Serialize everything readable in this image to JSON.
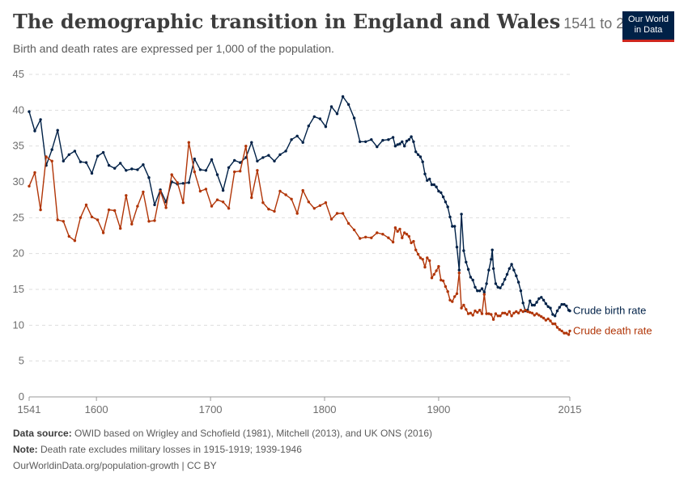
{
  "header": {
    "title": "The demographic transition in England and Wales",
    "range": "1541 to 2015",
    "subtitle": "Birth and death rates are expressed per 1,000 of the population."
  },
  "logo": {
    "line1": "Our World",
    "line2": "in Data"
  },
  "footer": {
    "source_label": "Data source:",
    "source_text": " OWID based on Wrigley and Schofield (1981), Mitchell (2013), and UK ONS (2016)",
    "note_label": "Note:",
    "note_text": " Death rate excludes military losses in 1915-1919; 1939-1946",
    "link": "OurWorldinData.org/population-growth | CC BY"
  },
  "chart_data": {
    "type": "line",
    "xlim": [
      1541,
      2015
    ],
    "ylim": [
      0,
      45
    ],
    "yticks": [
      0,
      5,
      10,
      15,
      20,
      25,
      30,
      35,
      40,
      45
    ],
    "xticks": [
      1541,
      1600,
      1700,
      1800,
      1900,
      2015
    ],
    "grid": true,
    "series": [
      {
        "name": "Crude birth rate",
        "color": "#002147",
        "points": [
          [
            1541,
            39.8
          ],
          [
            1546,
            37.1
          ],
          [
            1551,
            38.7
          ],
          [
            1556,
            32.3
          ],
          [
            1561,
            34.5
          ],
          [
            1566,
            37.2
          ],
          [
            1571,
            32.9
          ],
          [
            1576,
            33.8
          ],
          [
            1581,
            34.3
          ],
          [
            1586,
            32.8
          ],
          [
            1591,
            32.7
          ],
          [
            1596,
            31.2
          ],
          [
            1601,
            33.6
          ],
          [
            1606,
            34.1
          ],
          [
            1611,
            32.3
          ],
          [
            1616,
            31.9
          ],
          [
            1621,
            32.6
          ],
          [
            1626,
            31.6
          ],
          [
            1631,
            31.8
          ],
          [
            1636,
            31.7
          ],
          [
            1641,
            32.4
          ],
          [
            1646,
            30.6
          ],
          [
            1651,
            26.8
          ],
          [
            1656,
            28.9
          ],
          [
            1661,
            27.2
          ],
          [
            1666,
            30.0
          ],
          [
            1671,
            29.7
          ],
          [
            1676,
            29.8
          ],
          [
            1681,
            29.9
          ],
          [
            1686,
            33.2
          ],
          [
            1691,
            31.7
          ],
          [
            1696,
            31.6
          ],
          [
            1701,
            33.1
          ],
          [
            1706,
            31.0
          ],
          [
            1711,
            28.8
          ],
          [
            1716,
            32.0
          ],
          [
            1721,
            33.0
          ],
          [
            1726,
            32.7
          ],
          [
            1731,
            33.4
          ],
          [
            1736,
            35.5
          ],
          [
            1741,
            32.9
          ],
          [
            1746,
            33.4
          ],
          [
            1751,
            33.7
          ],
          [
            1756,
            32.9
          ],
          [
            1761,
            33.8
          ],
          [
            1766,
            34.3
          ],
          [
            1771,
            35.9
          ],
          [
            1776,
            36.4
          ],
          [
            1781,
            35.5
          ],
          [
            1786,
            37.8
          ],
          [
            1791,
            39.1
          ],
          [
            1796,
            38.8
          ],
          [
            1801,
            37.7
          ],
          [
            1806,
            40.5
          ],
          [
            1811,
            39.5
          ],
          [
            1816,
            41.9
          ],
          [
            1821,
            40.8
          ],
          [
            1826,
            38.9
          ],
          [
            1831,
            35.6
          ],
          [
            1836,
            35.6
          ],
          [
            1841,
            35.9
          ],
          [
            1846,
            34.9
          ],
          [
            1851,
            35.8
          ],
          [
            1856,
            35.9
          ],
          [
            1860,
            36.2
          ],
          [
            1862,
            35.0
          ],
          [
            1864,
            35.2
          ],
          [
            1866,
            35.3
          ],
          [
            1868,
            35.6
          ],
          [
            1870,
            35.0
          ],
          [
            1872,
            35.7
          ],
          [
            1874,
            35.9
          ],
          [
            1876,
            36.3
          ],
          [
            1878,
            35.6
          ],
          [
            1880,
            34.2
          ],
          [
            1882,
            33.8
          ],
          [
            1884,
            33.5
          ],
          [
            1886,
            32.8
          ],
          [
            1888,
            31.1
          ],
          [
            1890,
            30.2
          ],
          [
            1892,
            30.4
          ],
          [
            1894,
            29.6
          ],
          [
            1896,
            29.6
          ],
          [
            1898,
            29.3
          ],
          [
            1900,
            28.7
          ],
          [
            1902,
            28.5
          ],
          [
            1904,
            27.9
          ],
          [
            1906,
            27.2
          ],
          [
            1908,
            26.5
          ],
          [
            1910,
            25.1
          ],
          [
            1912,
            23.8
          ],
          [
            1914,
            23.8
          ],
          [
            1916,
            20.9
          ],
          [
            1918,
            17.7
          ],
          [
            1920,
            25.5
          ],
          [
            1922,
            20.4
          ],
          [
            1924,
            18.8
          ],
          [
            1926,
            17.8
          ],
          [
            1928,
            16.7
          ],
          [
            1930,
            16.3
          ],
          [
            1932,
            15.3
          ],
          [
            1934,
            14.8
          ],
          [
            1936,
            14.8
          ],
          [
            1938,
            15.1
          ],
          [
            1940,
            14.6
          ],
          [
            1942,
            15.8
          ],
          [
            1944,
            17.7
          ],
          [
            1946,
            19.2
          ],
          [
            1947,
            20.5
          ],
          [
            1948,
            17.9
          ],
          [
            1950,
            15.8
          ],
          [
            1952,
            15.3
          ],
          [
            1954,
            15.2
          ],
          [
            1956,
            15.7
          ],
          [
            1958,
            16.4
          ],
          [
            1960,
            17.1
          ],
          [
            1962,
            17.9
          ],
          [
            1964,
            18.5
          ],
          [
            1966,
            17.7
          ],
          [
            1968,
            16.9
          ],
          [
            1970,
            16.0
          ],
          [
            1972,
            14.8
          ],
          [
            1974,
            13.1
          ],
          [
            1976,
            12.0
          ],
          [
            1978,
            12.1
          ],
          [
            1980,
            13.4
          ],
          [
            1982,
            12.8
          ],
          [
            1984,
            12.8
          ],
          [
            1986,
            13.2
          ],
          [
            1988,
            13.7
          ],
          [
            1990,
            13.9
          ],
          [
            1992,
            13.5
          ],
          [
            1994,
            13.0
          ],
          [
            1996,
            12.6
          ],
          [
            1998,
            12.4
          ],
          [
            2000,
            11.5
          ],
          [
            2002,
            11.3
          ],
          [
            2004,
            12.0
          ],
          [
            2006,
            12.5
          ],
          [
            2008,
            12.9
          ],
          [
            2010,
            12.9
          ],
          [
            2012,
            12.7
          ],
          [
            2014,
            12.1
          ],
          [
            2015,
            12.0
          ]
        ]
      },
      {
        "name": "Crude death rate",
        "color": "#b13507",
        "points": [
          [
            1541,
            29.4
          ],
          [
            1546,
            31.3
          ],
          [
            1551,
            26.1
          ],
          [
            1556,
            33.5
          ],
          [
            1561,
            32.9
          ],
          [
            1566,
            24.7
          ],
          [
            1571,
            24.5
          ],
          [
            1576,
            22.4
          ],
          [
            1581,
            21.8
          ],
          [
            1586,
            25.0
          ],
          [
            1591,
            26.8
          ],
          [
            1596,
            25.1
          ],
          [
            1601,
            24.7
          ],
          [
            1606,
            22.9
          ],
          [
            1611,
            26.1
          ],
          [
            1616,
            26.0
          ],
          [
            1621,
            23.5
          ],
          [
            1626,
            28.1
          ],
          [
            1631,
            24.1
          ],
          [
            1636,
            26.6
          ],
          [
            1641,
            28.6
          ],
          [
            1646,
            24.5
          ],
          [
            1651,
            24.6
          ],
          [
            1656,
            28.7
          ],
          [
            1661,
            26.4
          ],
          [
            1666,
            31.0
          ],
          [
            1671,
            29.9
          ],
          [
            1676,
            27.1
          ],
          [
            1681,
            35.5
          ],
          [
            1686,
            31.4
          ],
          [
            1691,
            28.7
          ],
          [
            1696,
            29.0
          ],
          [
            1701,
            26.6
          ],
          [
            1706,
            27.5
          ],
          [
            1711,
            27.2
          ],
          [
            1716,
            26.3
          ],
          [
            1721,
            31.4
          ],
          [
            1726,
            31.5
          ],
          [
            1731,
            35.0
          ],
          [
            1736,
            27.8
          ],
          [
            1741,
            31.6
          ],
          [
            1746,
            27.1
          ],
          [
            1751,
            26.2
          ],
          [
            1756,
            25.9
          ],
          [
            1761,
            28.7
          ],
          [
            1766,
            28.2
          ],
          [
            1771,
            27.6
          ],
          [
            1776,
            25.6
          ],
          [
            1781,
            28.8
          ],
          [
            1786,
            27.2
          ],
          [
            1791,
            26.3
          ],
          [
            1796,
            26.7
          ],
          [
            1801,
            27.1
          ],
          [
            1806,
            24.8
          ],
          [
            1811,
            25.6
          ],
          [
            1816,
            25.6
          ],
          [
            1821,
            24.2
          ],
          [
            1826,
            23.3
          ],
          [
            1831,
            22.1
          ],
          [
            1836,
            22.3
          ],
          [
            1841,
            22.2
          ],
          [
            1846,
            22.9
          ],
          [
            1851,
            22.7
          ],
          [
            1856,
            22.2
          ],
          [
            1860,
            21.6
          ],
          [
            1862,
            23.6
          ],
          [
            1864,
            23.1
          ],
          [
            1866,
            23.4
          ],
          [
            1868,
            22.2
          ],
          [
            1870,
            22.9
          ],
          [
            1872,
            22.7
          ],
          [
            1874,
            22.4
          ],
          [
            1876,
            21.5
          ],
          [
            1878,
            21.7
          ],
          [
            1880,
            20.5
          ],
          [
            1882,
            19.9
          ],
          [
            1884,
            19.4
          ],
          [
            1886,
            19.2
          ],
          [
            1888,
            18.1
          ],
          [
            1890,
            19.4
          ],
          [
            1892,
            19.0
          ],
          [
            1894,
            16.6
          ],
          [
            1896,
            17.1
          ],
          [
            1898,
            17.6
          ],
          [
            1900,
            18.2
          ],
          [
            1902,
            16.3
          ],
          [
            1904,
            16.2
          ],
          [
            1906,
            15.4
          ],
          [
            1908,
            14.7
          ],
          [
            1910,
            13.5
          ],
          [
            1912,
            13.3
          ],
          [
            1914,
            14.0
          ],
          [
            1916,
            14.4
          ],
          [
            1918,
            17.3
          ],
          [
            1920,
            12.4
          ],
          [
            1922,
            12.8
          ],
          [
            1924,
            12.2
          ],
          [
            1926,
            11.6
          ],
          [
            1928,
            11.7
          ],
          [
            1930,
            11.4
          ],
          [
            1932,
            12.0
          ],
          [
            1934,
            11.8
          ],
          [
            1936,
            12.1
          ],
          [
            1938,
            11.6
          ],
          [
            1940,
            14.3
          ],
          [
            1942,
            11.6
          ],
          [
            1944,
            11.6
          ],
          [
            1946,
            11.5
          ],
          [
            1948,
            10.8
          ],
          [
            1950,
            11.6
          ],
          [
            1952,
            11.3
          ],
          [
            1954,
            11.3
          ],
          [
            1956,
            11.7
          ],
          [
            1958,
            11.7
          ],
          [
            1960,
            11.5
          ],
          [
            1962,
            11.9
          ],
          [
            1964,
            11.3
          ],
          [
            1966,
            11.7
          ],
          [
            1968,
            11.9
          ],
          [
            1970,
            11.7
          ],
          [
            1972,
            12.1
          ],
          [
            1974,
            11.9
          ],
          [
            1976,
            12.1
          ],
          [
            1978,
            11.9
          ],
          [
            1980,
            11.8
          ],
          [
            1982,
            11.7
          ],
          [
            1984,
            11.4
          ],
          [
            1986,
            11.6
          ],
          [
            1988,
            11.4
          ],
          [
            1990,
            11.2
          ],
          [
            1992,
            11.0
          ],
          [
            1994,
            10.7
          ],
          [
            1996,
            10.9
          ],
          [
            1998,
            10.6
          ],
          [
            2000,
            10.2
          ],
          [
            2002,
            10.2
          ],
          [
            2004,
            9.7
          ],
          [
            2006,
            9.4
          ],
          [
            2008,
            9.2
          ],
          [
            2010,
            8.9
          ],
          [
            2012,
            8.9
          ],
          [
            2014,
            8.7
          ],
          [
            2015,
            9.2
          ]
        ]
      }
    ]
  }
}
